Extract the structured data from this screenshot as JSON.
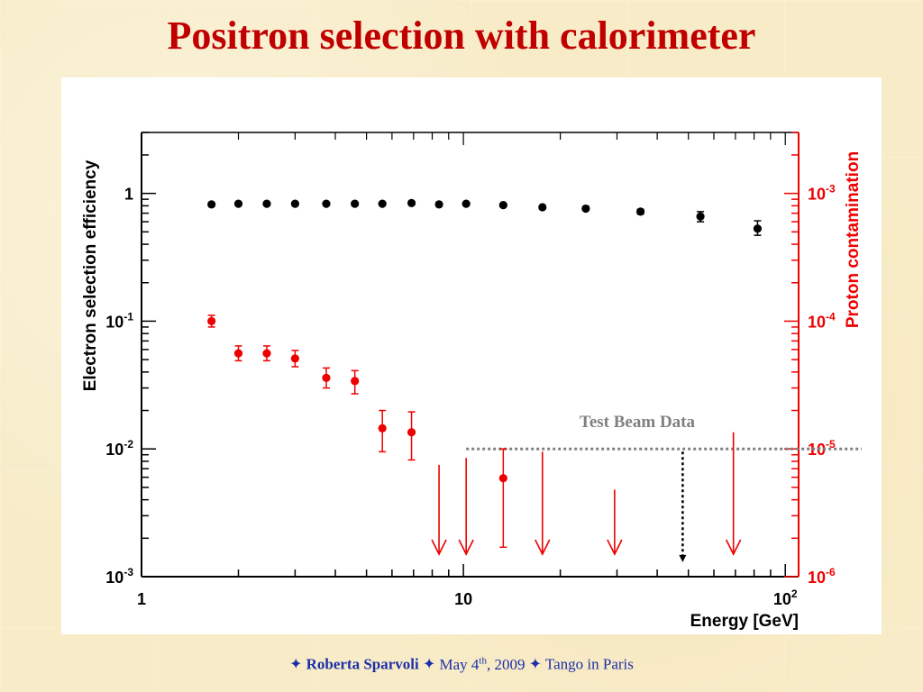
{
  "slide": {
    "title": "Positron selection with calorimeter",
    "footer": {
      "sep": "✦",
      "author": "Roberta Sparvoli",
      "date_pre": "May 4",
      "date_sup": "th",
      "date_post": ", 2009",
      "event": "Tango in Paris"
    }
  },
  "chart_data": {
    "type": "scatter",
    "xlabel": "Energy [GeV]",
    "ylabel_left": "Electron selection efficiency",
    "ylabel_right": "Proton contamination",
    "xscale": "log",
    "xlim": [
      1,
      110
    ],
    "ylim_left": [
      0.001,
      3
    ],
    "ylim_right": [
      1e-06,
      0.003
    ],
    "x_tick_labels": [
      {
        "value": 1,
        "base": "1",
        "exp": ""
      },
      {
        "value": 10,
        "base": "10",
        "exp": ""
      },
      {
        "value": 100,
        "base": "10",
        "exp": "2"
      }
    ],
    "y_left_tick_labels": [
      {
        "value": 1,
        "base": "1",
        "exp": ""
      },
      {
        "value": 0.1,
        "base": "10",
        "exp": "-1"
      },
      {
        "value": 0.01,
        "base": "10",
        "exp": "-2"
      },
      {
        "value": 0.001,
        "base": "10",
        "exp": "-3"
      }
    ],
    "y_right_tick_labels": [
      {
        "value": 0.001,
        "base": "10",
        "exp": "-3"
      },
      {
        "value": 0.0001,
        "base": "10",
        "exp": "-4"
      },
      {
        "value": 1e-05,
        "base": "10",
        "exp": "-5"
      },
      {
        "value": 1e-06,
        "base": "10",
        "exp": "-6"
      }
    ],
    "series": [
      {
        "axis": "left",
        "color": "#000000",
        "points": [
          {
            "x": 1.65,
            "y": 0.82,
            "lo": 0.8,
            "hi": 0.84
          },
          {
            "x": 2.0,
            "y": 0.83,
            "lo": 0.81,
            "hi": 0.85
          },
          {
            "x": 2.45,
            "y": 0.83,
            "lo": 0.81,
            "hi": 0.85
          },
          {
            "x": 3.0,
            "y": 0.83,
            "lo": 0.81,
            "hi": 0.85
          },
          {
            "x": 3.75,
            "y": 0.83,
            "lo": 0.81,
            "hi": 0.85
          },
          {
            "x": 4.6,
            "y": 0.83,
            "lo": 0.81,
            "hi": 0.85
          },
          {
            "x": 5.6,
            "y": 0.83,
            "lo": 0.81,
            "hi": 0.85
          },
          {
            "x": 6.9,
            "y": 0.84,
            "lo": 0.82,
            "hi": 0.86
          },
          {
            "x": 8.4,
            "y": 0.82,
            "lo": 0.8,
            "hi": 0.84
          },
          {
            "x": 10.2,
            "y": 0.83,
            "lo": 0.81,
            "hi": 0.85
          },
          {
            "x": 13.3,
            "y": 0.81,
            "lo": 0.79,
            "hi": 0.83
          },
          {
            "x": 17.6,
            "y": 0.78,
            "lo": 0.76,
            "hi": 0.8
          },
          {
            "x": 24.0,
            "y": 0.76,
            "lo": 0.74,
            "hi": 0.79
          },
          {
            "x": 35.5,
            "y": 0.72,
            "lo": 0.69,
            "hi": 0.75
          },
          {
            "x": 54.5,
            "y": 0.66,
            "lo": 0.6,
            "hi": 0.72
          },
          {
            "x": 82.0,
            "y": 0.53,
            "lo": 0.47,
            "hi": 0.61
          }
        ]
      },
      {
        "axis": "right",
        "color": "#ee0000",
        "points": [
          {
            "x": 1.65,
            "y": 0.0001,
            "lo": 9e-05,
            "hi": 0.000111
          },
          {
            "x": 2.0,
            "y": 5.6e-05,
            "lo": 4.9e-05,
            "hi": 6.4e-05
          },
          {
            "x": 2.45,
            "y": 5.6e-05,
            "lo": 4.9e-05,
            "hi": 6.4e-05
          },
          {
            "x": 3.0,
            "y": 5.1e-05,
            "lo": 4.4e-05,
            "hi": 5.9e-05
          },
          {
            "x": 3.75,
            "y": 3.6e-05,
            "lo": 3e-05,
            "hi": 4.3e-05
          },
          {
            "x": 4.6,
            "y": 3.4e-05,
            "lo": 2.7e-05,
            "hi": 4.1e-05
          },
          {
            "x": 5.6,
            "y": 1.45e-05,
            "lo": 9.5e-06,
            "hi": 2e-05
          },
          {
            "x": 6.9,
            "y": 1.35e-05,
            "lo": 8.2e-06,
            "hi": 1.95e-05
          },
          {
            "x": 13.3,
            "y": 5.9e-06,
            "lo": 1.7e-06,
            "hi": 1e-05
          }
        ]
      }
    ],
    "upper_limits": [
      {
        "x": 8.4,
        "from": 7.5e-06,
        "to": 1.5e-06
      },
      {
        "x": 10.2,
        "from": 8.5e-06,
        "to": 1.5e-06
      },
      {
        "x": 17.6,
        "from": 9.5e-06,
        "to": 1.5e-06
      },
      {
        "x": 29.5,
        "from": 4.8e-06,
        "to": 1.5e-06
      },
      {
        "x": 69.0,
        "from": 1.35e-05,
        "to": 1.5e-06
      }
    ],
    "reference_line": {
      "label": "Test Beam Data",
      "y": 1e-05,
      "x_from": 10.2,
      "drop_x": 48,
      "drop_to": 1.3e-06
    },
    "colors": {
      "left_axis": "#000000",
      "right_axis": "#ee0000",
      "reference": "#808080"
    }
  }
}
